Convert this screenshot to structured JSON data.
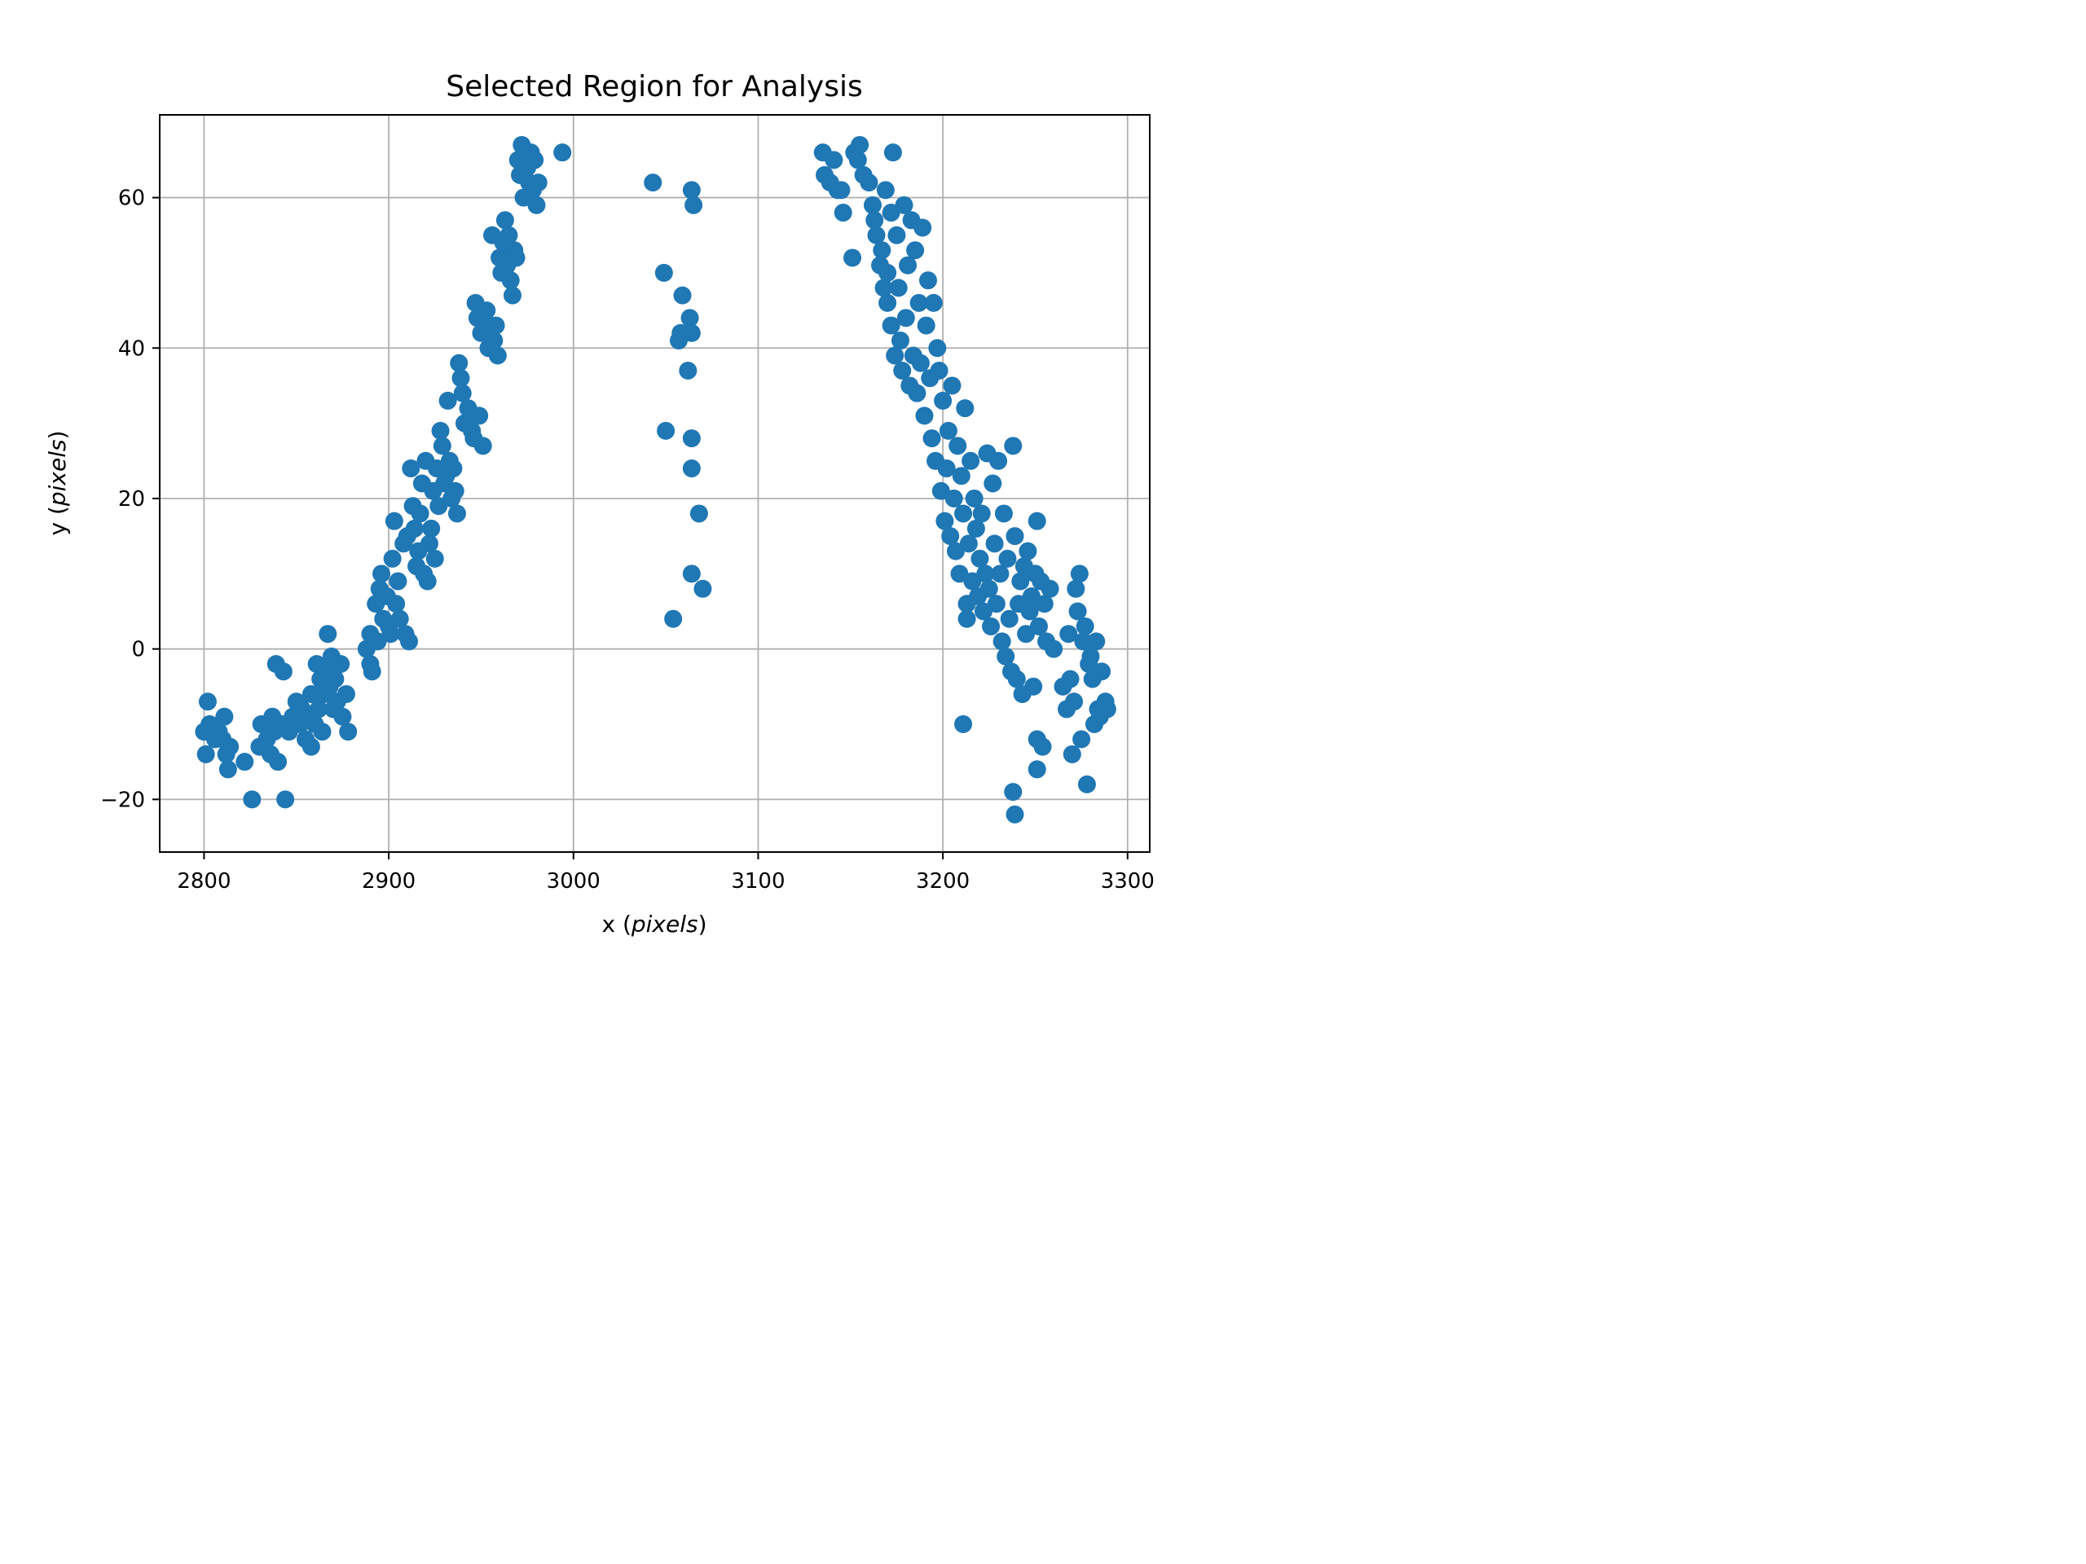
{
  "chart_data": {
    "type": "scatter",
    "title": "Selected Region for Analysis",
    "xlabel": {
      "prefix": "x (",
      "italic": "pixels",
      "suffix": ")"
    },
    "ylabel": {
      "prefix": "y (",
      "italic": "pixels",
      "suffix": ")"
    },
    "xlim": [
      2776,
      3312
    ],
    "ylim": [
      -27,
      71
    ],
    "x_ticks": [
      2800,
      2900,
      3000,
      3100,
      3200,
      3300
    ],
    "y_ticks": [
      -20,
      0,
      20,
      40,
      60
    ],
    "y_tick_labels": [
      "−20",
      "0",
      "20",
      "40",
      "60"
    ],
    "grid": true,
    "marker_color": "#1f77b4",
    "series": [
      {
        "color": "#1f77b4",
        "points": [
          [
            2800,
            -11
          ],
          [
            2801,
            -14
          ],
          [
            2802,
            -7
          ],
          [
            2803,
            -10
          ],
          [
            2806,
            -12
          ],
          [
            2808,
            -11
          ],
          [
            2810,
            -12
          ],
          [
            2811,
            -9
          ],
          [
            2812,
            -14
          ],
          [
            2813,
            -16
          ],
          [
            2814,
            -13
          ],
          [
            2822,
            -15
          ],
          [
            2826,
            -20
          ],
          [
            2830,
            -13
          ],
          [
            2831,
            -10
          ],
          [
            2834,
            -12
          ],
          [
            2836,
            -14
          ],
          [
            2837,
            -9
          ],
          [
            2838,
            -11
          ],
          [
            2839,
            -2
          ],
          [
            2840,
            -15
          ],
          [
            2842,
            -10
          ],
          [
            2843,
            -3
          ],
          [
            2844,
            -20
          ],
          [
            2846,
            -11
          ],
          [
            2848,
            -9
          ],
          [
            2850,
            -7
          ],
          [
            2852,
            -10
          ],
          [
            2853,
            -8
          ],
          [
            2855,
            -12
          ],
          [
            2856,
            -9
          ],
          [
            2858,
            -13
          ],
          [
            2858,
            -6
          ],
          [
            2860,
            -10
          ],
          [
            2861,
            -2
          ],
          [
            2862,
            -8
          ],
          [
            2863,
            -4
          ],
          [
            2864,
            -11
          ],
          [
            2865,
            -6
          ],
          [
            2866,
            -3
          ],
          [
            2867,
            2
          ],
          [
            2868,
            -5
          ],
          [
            2869,
            -1
          ],
          [
            2870,
            -8
          ],
          [
            2871,
            -4
          ],
          [
            2872,
            -7
          ],
          [
            2874,
            -2
          ],
          [
            2875,
            -9
          ],
          [
            2877,
            -6
          ],
          [
            2878,
            -11
          ],
          [
            2888,
            0
          ],
          [
            2890,
            2
          ],
          [
            2890,
            -2
          ],
          [
            2891,
            -3
          ],
          [
            2893,
            6
          ],
          [
            2894,
            1
          ],
          [
            2895,
            8
          ],
          [
            2896,
            10
          ],
          [
            2897,
            4
          ],
          [
            2899,
            7
          ],
          [
            2900,
            3
          ],
          [
            2901,
            2
          ],
          [
            2902,
            12
          ],
          [
            2903,
            17
          ],
          [
            2904,
            6
          ],
          [
            2905,
            9
          ],
          [
            2906,
            4
          ],
          [
            2908,
            14
          ],
          [
            2909,
            2
          ],
          [
            2910,
            15
          ],
          [
            2911,
            1
          ],
          [
            2912,
            24
          ],
          [
            2913,
            19
          ],
          [
            2914,
            16
          ],
          [
            2915,
            11
          ],
          [
            2916,
            13
          ],
          [
            2917,
            18
          ],
          [
            2918,
            22
          ],
          [
            2919,
            10
          ],
          [
            2920,
            25
          ],
          [
            2921,
            9
          ],
          [
            2922,
            14
          ],
          [
            2923,
            16
          ],
          [
            2924,
            21
          ],
          [
            2925,
            12
          ],
          [
            2926,
            24
          ],
          [
            2927,
            19
          ],
          [
            2928,
            29
          ],
          [
            2929,
            27
          ],
          [
            2930,
            22
          ],
          [
            2931,
            23
          ],
          [
            2932,
            33
          ],
          [
            2933,
            25
          ],
          [
            2934,
            20
          ],
          [
            2935,
            24
          ],
          [
            2936,
            21
          ],
          [
            2937,
            18
          ],
          [
            2938,
            38
          ],
          [
            2939,
            36
          ],
          [
            2940,
            34
          ],
          [
            2941,
            30
          ],
          [
            2943,
            32
          ],
          [
            2945,
            29
          ],
          [
            2946,
            28
          ],
          [
            2947,
            46
          ],
          [
            2948,
            44
          ],
          [
            2949,
            31
          ],
          [
            2950,
            42
          ],
          [
            2951,
            27
          ],
          [
            2952,
            43
          ],
          [
            2953,
            45
          ],
          [
            2954,
            40
          ],
          [
            2956,
            55
          ],
          [
            2957,
            41
          ],
          [
            2958,
            43
          ],
          [
            2959,
            39
          ],
          [
            2960,
            52
          ],
          [
            2961,
            50
          ],
          [
            2962,
            54
          ],
          [
            2963,
            57
          ],
          [
            2964,
            51
          ],
          [
            2965,
            55
          ],
          [
            2966,
            49
          ],
          [
            2967,
            47
          ],
          [
            2968,
            53
          ],
          [
            2969,
            52
          ],
          [
            2970,
            65
          ],
          [
            2971,
            63
          ],
          [
            2972,
            67
          ],
          [
            2973,
            60
          ],
          [
            2974,
            66
          ],
          [
            2975,
            64
          ],
          [
            2976,
            62
          ],
          [
            2977,
            66
          ],
          [
            2978,
            61
          ],
          [
            2979,
            65
          ],
          [
            2980,
            59
          ],
          [
            2981,
            62
          ],
          [
            2994,
            66
          ],
          [
            3043,
            62
          ],
          [
            3049,
            50
          ],
          [
            3050,
            29
          ],
          [
            3054,
            4
          ],
          [
            3057,
            41
          ],
          [
            3058,
            42
          ],
          [
            3059,
            47
          ],
          [
            3062,
            37
          ],
          [
            3063,
            44
          ],
          [
            3064,
            61
          ],
          [
            3064,
            42
          ],
          [
            3064,
            28
          ],
          [
            3064,
            24
          ],
          [
            3064,
            10
          ],
          [
            3065,
            59
          ],
          [
            3068,
            18
          ],
          [
            3070,
            8
          ],
          [
            3135,
            66
          ],
          [
            3136,
            63
          ],
          [
            3139,
            62
          ],
          [
            3141,
            65
          ],
          [
            3143,
            61
          ],
          [
            3145,
            61
          ],
          [
            3146,
            58
          ],
          [
            3151,
            52
          ],
          [
            3152,
            66
          ],
          [
            3154,
            65
          ],
          [
            3155,
            67
          ],
          [
            3157,
            63
          ],
          [
            3160,
            62
          ],
          [
            3162,
            59
          ],
          [
            3163,
            57
          ],
          [
            3164,
            55
          ],
          [
            3166,
            51
          ],
          [
            3167,
            53
          ],
          [
            3168,
            48
          ],
          [
            3169,
            61
          ],
          [
            3170,
            50
          ],
          [
            3170,
            46
          ],
          [
            3172,
            58
          ],
          [
            3172,
            43
          ],
          [
            3173,
            66
          ],
          [
            3174,
            39
          ],
          [
            3175,
            55
          ],
          [
            3176,
            48
          ],
          [
            3177,
            41
          ],
          [
            3178,
            37
          ],
          [
            3179,
            59
          ],
          [
            3180,
            44
          ],
          [
            3181,
            51
          ],
          [
            3182,
            35
          ],
          [
            3183,
            57
          ],
          [
            3184,
            39
          ],
          [
            3185,
            53
          ],
          [
            3186,
            34
          ],
          [
            3187,
            46
          ],
          [
            3188,
            38
          ],
          [
            3189,
            56
          ],
          [
            3190,
            31
          ],
          [
            3191,
            43
          ],
          [
            3192,
            49
          ],
          [
            3193,
            36
          ],
          [
            3194,
            28
          ],
          [
            3195,
            46
          ],
          [
            3196,
            25
          ],
          [
            3197,
            40
          ],
          [
            3198,
            37
          ],
          [
            3199,
            21
          ],
          [
            3200,
            33
          ],
          [
            3201,
            17
          ],
          [
            3202,
            24
          ],
          [
            3203,
            29
          ],
          [
            3204,
            15
          ],
          [
            3205,
            35
          ],
          [
            3206,
            20
          ],
          [
            3207,
            13
          ],
          [
            3208,
            27
          ],
          [
            3209,
            10
          ],
          [
            3210,
            23
          ],
          [
            3211,
            -10
          ],
          [
            3211,
            18
          ],
          [
            3212,
            32
          ],
          [
            3213,
            6
          ],
          [
            3213,
            4
          ],
          [
            3214,
            14
          ],
          [
            3215,
            25
          ],
          [
            3216,
            9
          ],
          [
            3217,
            20
          ],
          [
            3218,
            16
          ],
          [
            3219,
            7
          ],
          [
            3220,
            12
          ],
          [
            3221,
            18
          ],
          [
            3222,
            5
          ],
          [
            3223,
            10
          ],
          [
            3224,
            26
          ],
          [
            3225,
            8
          ],
          [
            3226,
            3
          ],
          [
            3227,
            22
          ],
          [
            3228,
            14
          ],
          [
            3229,
            6
          ],
          [
            3230,
            25
          ],
          [
            3231,
            10
          ],
          [
            3232,
            1
          ],
          [
            3233,
            18
          ],
          [
            3234,
            -1
          ],
          [
            3235,
            12
          ],
          [
            3236,
            4
          ],
          [
            3237,
            -3
          ],
          [
            3238,
            27
          ],
          [
            3238,
            -19
          ],
          [
            3239,
            -22
          ],
          [
            3239,
            15
          ],
          [
            3240,
            -4
          ],
          [
            3241,
            6
          ],
          [
            3242,
            9
          ],
          [
            3243,
            -6
          ],
          [
            3244,
            11
          ],
          [
            3245,
            2
          ],
          [
            3246,
            13
          ],
          [
            3247,
            5
          ],
          [
            3248,
            7
          ],
          [
            3249,
            -5
          ],
          [
            3250,
            10
          ],
          [
            3251,
            17
          ],
          [
            3251,
            -12
          ],
          [
            3251,
            -16
          ],
          [
            3252,
            3
          ],
          [
            3253,
            9
          ],
          [
            3254,
            -13
          ],
          [
            3255,
            6
          ],
          [
            3256,
            1
          ],
          [
            3258,
            8
          ],
          [
            3260,
            0
          ],
          [
            3265,
            -5
          ],
          [
            3267,
            -8
          ],
          [
            3268,
            2
          ],
          [
            3269,
            -4
          ],
          [
            3270,
            -14
          ],
          [
            3271,
            -7
          ],
          [
            3272,
            8
          ],
          [
            3273,
            5
          ],
          [
            3274,
            10
          ],
          [
            3275,
            -12
          ],
          [
            3276,
            1
          ],
          [
            3277,
            3
          ],
          [
            3278,
            -18
          ],
          [
            3279,
            -2
          ],
          [
            3280,
            -1
          ],
          [
            3281,
            -4
          ],
          [
            3282,
            -10
          ],
          [
            3283,
            1
          ],
          [
            3284,
            -8
          ],
          [
            3285,
            -9
          ],
          [
            3286,
            -3
          ],
          [
            3288,
            -7
          ],
          [
            3289,
            -8
          ]
        ]
      }
    ]
  }
}
